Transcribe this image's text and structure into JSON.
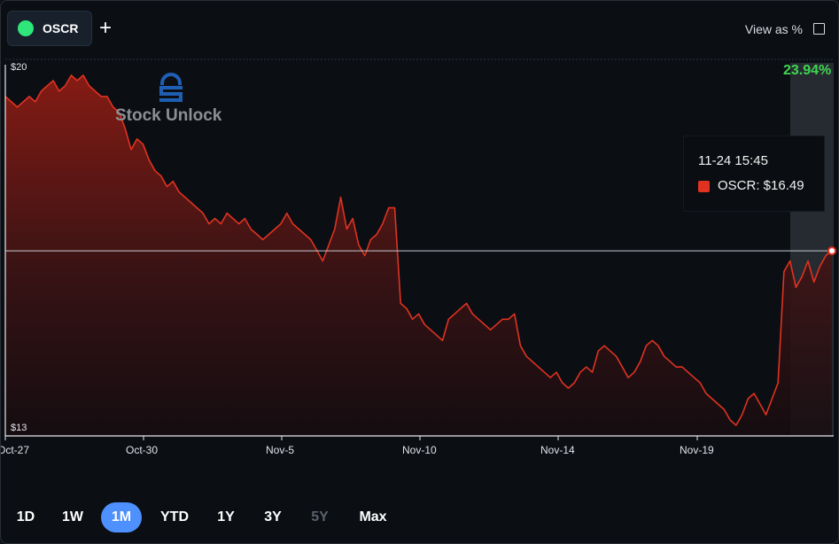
{
  "ticker_chip": {
    "label": "OSCR",
    "color": "#2ee67a"
  },
  "add_label": "+",
  "view_as_percent": {
    "label": "View as %",
    "checked": false
  },
  "watermark": {
    "text": "Stock Unlock"
  },
  "change_badge": {
    "text": "23.94%",
    "color": "#3fd651"
  },
  "tooltip": {
    "time": "11-24 15:45",
    "series_label": "OSCR: $16.49"
  },
  "range_buttons": [
    {
      "label": "1D",
      "state": "normal"
    },
    {
      "label": "1W",
      "state": "normal"
    },
    {
      "label": "1M",
      "state": "active"
    },
    {
      "label": "YTD",
      "state": "normal"
    },
    {
      "label": "1Y",
      "state": "normal"
    },
    {
      "label": "3Y",
      "state": "normal"
    },
    {
      "label": "5Y",
      "state": "disabled"
    },
    {
      "label": "Max",
      "state": "normal"
    }
  ],
  "chart_data": {
    "type": "area",
    "ylim": [
      13,
      20
    ],
    "y_ticks": [
      "$20",
      "$13"
    ],
    "x_ticks": [
      "Oct-27",
      "Oct-30",
      "Nov-5",
      "Nov-10",
      "Nov-14",
      "Nov-19"
    ],
    "line_color": "#e03220",
    "crosshair_value": 16.49,
    "series": [
      {
        "name": "OSCR",
        "values": [
          19.4,
          19.3,
          19.2,
          19.3,
          19.4,
          19.3,
          19.5,
          19.6,
          19.7,
          19.5,
          19.6,
          19.8,
          19.7,
          19.8,
          19.6,
          19.5,
          19.4,
          19.4,
          19.2,
          19.1,
          18.8,
          18.4,
          18.6,
          18.5,
          18.2,
          18.0,
          17.9,
          17.7,
          17.8,
          17.6,
          17.5,
          17.4,
          17.3,
          17.2,
          17.0,
          17.1,
          17.0,
          17.2,
          17.1,
          17.0,
          17.1,
          16.9,
          16.8,
          16.7,
          16.8,
          16.9,
          17.0,
          17.2,
          17.0,
          16.9,
          16.8,
          16.7,
          16.5,
          16.3,
          16.6,
          16.9,
          17.5,
          16.9,
          17.1,
          16.6,
          16.4,
          16.7,
          16.8,
          17.0,
          17.3,
          17.3,
          15.5,
          15.4,
          15.2,
          15.3,
          15.1,
          15.0,
          14.9,
          14.8,
          15.2,
          15.3,
          15.4,
          15.5,
          15.3,
          15.2,
          15.1,
          15.0,
          15.1,
          15.2,
          15.2,
          15.3,
          14.7,
          14.5,
          14.4,
          14.3,
          14.2,
          14.1,
          14.2,
          14.0,
          13.9,
          14.0,
          14.2,
          14.3,
          14.2,
          14.6,
          14.7,
          14.6,
          14.5,
          14.3,
          14.1,
          14.2,
          14.4,
          14.7,
          14.8,
          14.7,
          14.5,
          14.4,
          14.3,
          14.3,
          14.2,
          14.1,
          14.0,
          13.8,
          13.7,
          13.6,
          13.5,
          13.3,
          13.2,
          13.4,
          13.7,
          13.8,
          13.6,
          13.4,
          13.7,
          14.0,
          16.1,
          16.3,
          15.8,
          16.0,
          16.3,
          15.9,
          16.2,
          16.4,
          16.5
        ]
      }
    ]
  }
}
